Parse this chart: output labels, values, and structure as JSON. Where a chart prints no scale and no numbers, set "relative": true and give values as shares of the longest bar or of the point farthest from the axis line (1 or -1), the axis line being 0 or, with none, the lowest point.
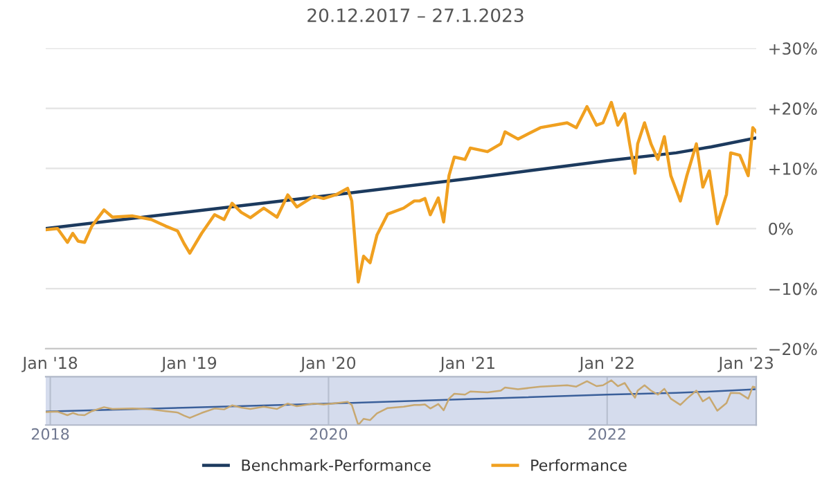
{
  "chart_data": [
    {
      "type": "line",
      "title": "20.12.2017 – 27.1.2023",
      "legend": "bottom",
      "grid": "y",
      "marker": "none",
      "line_style": "solid",
      "ylim": [
        -20,
        30
      ],
      "yticks": [
        {
          "value": -20,
          "label": "−20%"
        },
        {
          "value": -10,
          "label": "−10%"
        },
        {
          "value": 0,
          "label": "0%"
        },
        {
          "value": 10,
          "label": "+10%"
        },
        {
          "value": 20,
          "label": "+20%"
        },
        {
          "value": 30,
          "label": "+30%"
        }
      ],
      "xlim": [
        "2017-12-20",
        "2023-01-27"
      ],
      "xticks": [
        {
          "value": "2018-01-01",
          "label": "Jan '18"
        },
        {
          "value": "2019-01-01",
          "label": "Jan '19"
        },
        {
          "value": "2020-01-01",
          "label": "Jan '20"
        },
        {
          "value": "2021-01-01",
          "label": "Jan '21"
        },
        {
          "value": "2022-01-01",
          "label": "Jan '22"
        },
        {
          "value": "2023-01-01",
          "label": "Jan '23"
        }
      ],
      "series": [
        {
          "name": "Benchmark-Performance",
          "color": "#1c3a5e",
          "x": [
            "2017-12-20",
            "2019-01-01",
            "2020-01-01",
            "2021-01-01",
            "2022-01-01",
            "2022-07-01",
            "2022-10-01",
            "2023-01-27"
          ],
          "values": [
            0,
            2.8,
            5.5,
            8.3,
            11.3,
            12.6,
            13.6,
            15.1
          ]
        },
        {
          "name": "Performance",
          "color": "#f0a020",
          "x": [
            "2017-12-20",
            "2018-01-20",
            "2018-02-15",
            "2018-03-01",
            "2018-03-15",
            "2018-04-01",
            "2018-04-20",
            "2018-05-22",
            "2018-06-13",
            "2018-08-05",
            "2018-09-23",
            "2018-10-31",
            "2018-12-01",
            "2018-12-18",
            "2019-01-02",
            "2019-02-02",
            "2019-03-08",
            "2019-04-02",
            "2019-04-23",
            "2019-05-17",
            "2019-06-10",
            "2019-07-15",
            "2019-08-19",
            "2019-09-16",
            "2019-10-10",
            "2019-11-24",
            "2019-12-19",
            "2020-01-23",
            "2020-02-20",
            "2020-03-02",
            "2020-03-19",
            "2020-04-02",
            "2020-04-19",
            "2020-05-07",
            "2020-06-04",
            "2020-07-16",
            "2020-08-13",
            "2020-08-27",
            "2020-09-10",
            "2020-09-24",
            "2020-10-15",
            "2020-10-29",
            "2020-11-12",
            "2020-11-26",
            "2020-12-24",
            "2021-01-07",
            "2021-02-21",
            "2021-03-28",
            "2021-04-08",
            "2021-05-12",
            "2021-07-10",
            "2021-09-18",
            "2021-10-12",
            "2021-11-09",
            "2021-12-04",
            "2021-12-21",
            "2022-01-12",
            "2022-01-29",
            "2022-02-16",
            "2022-03-01",
            "2022-03-15",
            "2022-03-22",
            "2022-04-09",
            "2022-04-26",
            "2022-05-14",
            "2022-05-31",
            "2022-06-17",
            "2022-07-12",
            "2022-07-29",
            "2022-08-23",
            "2022-09-09",
            "2022-09-26",
            "2022-10-17",
            "2022-11-10",
            "2022-11-21",
            "2022-12-15",
            "2023-01-06",
            "2023-01-18",
            "2023-01-27"
          ],
          "values": [
            -0.2,
            0,
            -2.3,
            -0.8,
            -2.1,
            -2.3,
            0.4,
            3.1,
            1.9,
            2.1,
            1.5,
            0.4,
            -0.4,
            -2.5,
            -4.1,
            -0.8,
            2.3,
            1.5,
            4.2,
            2.7,
            1.8,
            3.4,
            1.9,
            5.6,
            3.6,
            5.4,
            5.0,
            5.7,
            6.7,
            4.6,
            -8.9,
            -4.6,
            -5.7,
            -1.1,
            2.4,
            3.4,
            4.6,
            4.6,
            5.0,
            2.3,
            5.1,
            1.1,
            8.8,
            11.9,
            11.5,
            13.4,
            12.8,
            14.1,
            16.1,
            14.9,
            16.8,
            17.6,
            16.8,
            20.3,
            17.2,
            17.6,
            21.0,
            17.2,
            19.1,
            14.1,
            9.2,
            14.1,
            17.6,
            14.1,
            11.5,
            15.3,
            8.8,
            4.6,
            8.8,
            14.1,
            6.9,
            9.6,
            0.8,
            5.7,
            12.6,
            12.2,
            8.8,
            16.8,
            16.1
          ]
        }
      ]
    },
    {
      "type": "line",
      "relative": true,
      "grid": "x",
      "xlim": [
        "2017-12-20",
        "2023-01-27"
      ],
      "xticks": [
        {
          "value": "2018-01-01",
          "label": "2018"
        },
        {
          "value": "2020-01-01",
          "label": "2020"
        },
        {
          "value": "2022-01-01",
          "label": "2022"
        }
      ],
      "series": [
        {
          "color": "#3a5f9a",
          "x": [
            "2017-12-20",
            "2019-01-01",
            "2020-01-01",
            "2021-01-01",
            "2022-01-01",
            "2022-07-01",
            "2022-10-01",
            "2023-01-27"
          ],
          "values": [
            0.3,
            0.39,
            0.48,
            0.58,
            0.68,
            0.72,
            0.75,
            0.8
          ]
        },
        {
          "color": "#c8a870",
          "x": [
            "2017-12-20",
            "2018-01-20",
            "2018-02-15",
            "2018-03-01",
            "2018-03-15",
            "2018-04-01",
            "2018-04-20",
            "2018-05-22",
            "2018-06-13",
            "2018-08-05",
            "2018-09-23",
            "2018-10-31",
            "2018-12-01",
            "2018-12-18",
            "2019-01-02",
            "2019-02-02",
            "2019-03-08",
            "2019-04-02",
            "2019-04-23",
            "2019-05-17",
            "2019-06-10",
            "2019-07-15",
            "2019-08-19",
            "2019-09-16",
            "2019-10-10",
            "2019-11-24",
            "2019-12-19",
            "2020-01-23",
            "2020-02-20",
            "2020-03-02",
            "2020-03-19",
            "2020-04-02",
            "2020-04-19",
            "2020-05-07",
            "2020-06-04",
            "2020-07-16",
            "2020-08-13",
            "2020-08-27",
            "2020-09-10",
            "2020-09-24",
            "2020-10-15",
            "2020-10-29",
            "2020-11-12",
            "2020-11-26",
            "2020-12-24",
            "2021-01-07",
            "2021-02-21",
            "2021-03-28",
            "2021-04-08",
            "2021-05-12",
            "2021-07-10",
            "2021-09-18",
            "2021-10-12",
            "2021-11-09",
            "2021-12-04",
            "2021-12-21",
            "2022-01-12",
            "2022-01-29",
            "2022-02-16",
            "2022-03-01",
            "2022-03-15",
            "2022-03-22",
            "2022-04-09",
            "2022-04-26",
            "2022-05-14",
            "2022-05-31",
            "2022-06-17",
            "2022-07-12",
            "2022-07-29",
            "2022-08-23",
            "2022-09-09",
            "2022-09-26",
            "2022-10-17",
            "2022-11-10",
            "2022-11-21",
            "2022-12-15",
            "2023-01-06",
            "2023-01-18",
            "2023-01-27"
          ],
          "values": [
            0.29,
            0.3,
            0.22,
            0.27,
            0.23,
            0.22,
            0.31,
            0.4,
            0.36,
            0.37,
            0.35,
            0.31,
            0.28,
            0.21,
            0.16,
            0.27,
            0.37,
            0.35,
            0.44,
            0.39,
            0.36,
            0.41,
            0.36,
            0.48,
            0.42,
            0.48,
            0.46,
            0.49,
            0.52,
            0.45,
            0,
            0.14,
            0.11,
            0.26,
            0.38,
            0.41,
            0.45,
            0.45,
            0.46,
            0.37,
            0.47,
            0.33,
            0.59,
            0.7,
            0.68,
            0.75,
            0.73,
            0.77,
            0.84,
            0.8,
            0.86,
            0.89,
            0.86,
            0.98,
            0.87,
            0.89,
            1,
            0.87,
            0.94,
            0.77,
            0.61,
            0.77,
            0.89,
            0.77,
            0.68,
            0.81,
            0.59,
            0.45,
            0.59,
            0.77,
            0.53,
            0.62,
            0.32,
            0.49,
            0.72,
            0.71,
            0.59,
            0.86,
            0.84
          ]
        }
      ]
    }
  ]
}
